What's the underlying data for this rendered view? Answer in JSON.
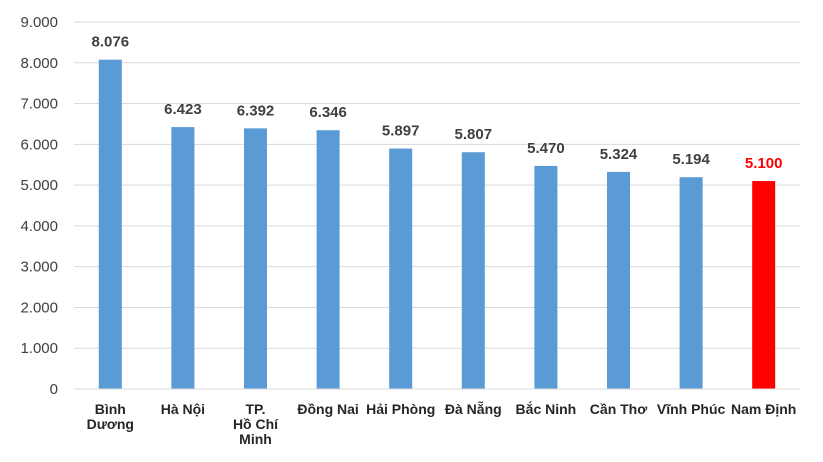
{
  "chart_data": {
    "type": "bar",
    "categories": [
      [
        "Bình",
        "Dương"
      ],
      [
        "Hà Nội"
      ],
      [
        "TP.",
        "Hồ Chí",
        "Minh"
      ],
      [
        "Đồng Nai"
      ],
      [
        "Hải Phòng"
      ],
      [
        "Đà Nẵng"
      ],
      [
        "Bắc Ninh"
      ],
      [
        "Cần  Thơ"
      ],
      [
        "Vĩnh Phúc"
      ],
      [
        "Nam Định"
      ]
    ],
    "values": [
      8076,
      6423,
      6392,
      6346,
      5897,
      5807,
      5470,
      5324,
      5194,
      5100
    ],
    "value_labels": [
      "8.076",
      "6.423",
      "6.392",
      "6.346",
      "5.897",
      "5.807",
      "5.470",
      "5.324",
      "5.194",
      "5.100"
    ],
    "highlight_index": 9,
    "ylim": [
      0,
      9000
    ],
    "yticks": [
      0,
      1000,
      2000,
      3000,
      4000,
      5000,
      6000,
      7000,
      8000,
      9000
    ],
    "ytick_labels": [
      "0",
      "1.000",
      "2.000",
      "3.000",
      "4.000",
      "5.000",
      "6.000",
      "7.000",
      "8.000",
      "9.000"
    ],
    "grid": true,
    "colors": {
      "bar": "#5b9bd5",
      "highlight_bar": "#ff0000",
      "label": "#404040",
      "highlight_label": "#ff0000",
      "grid": "#d9d9d9"
    }
  }
}
